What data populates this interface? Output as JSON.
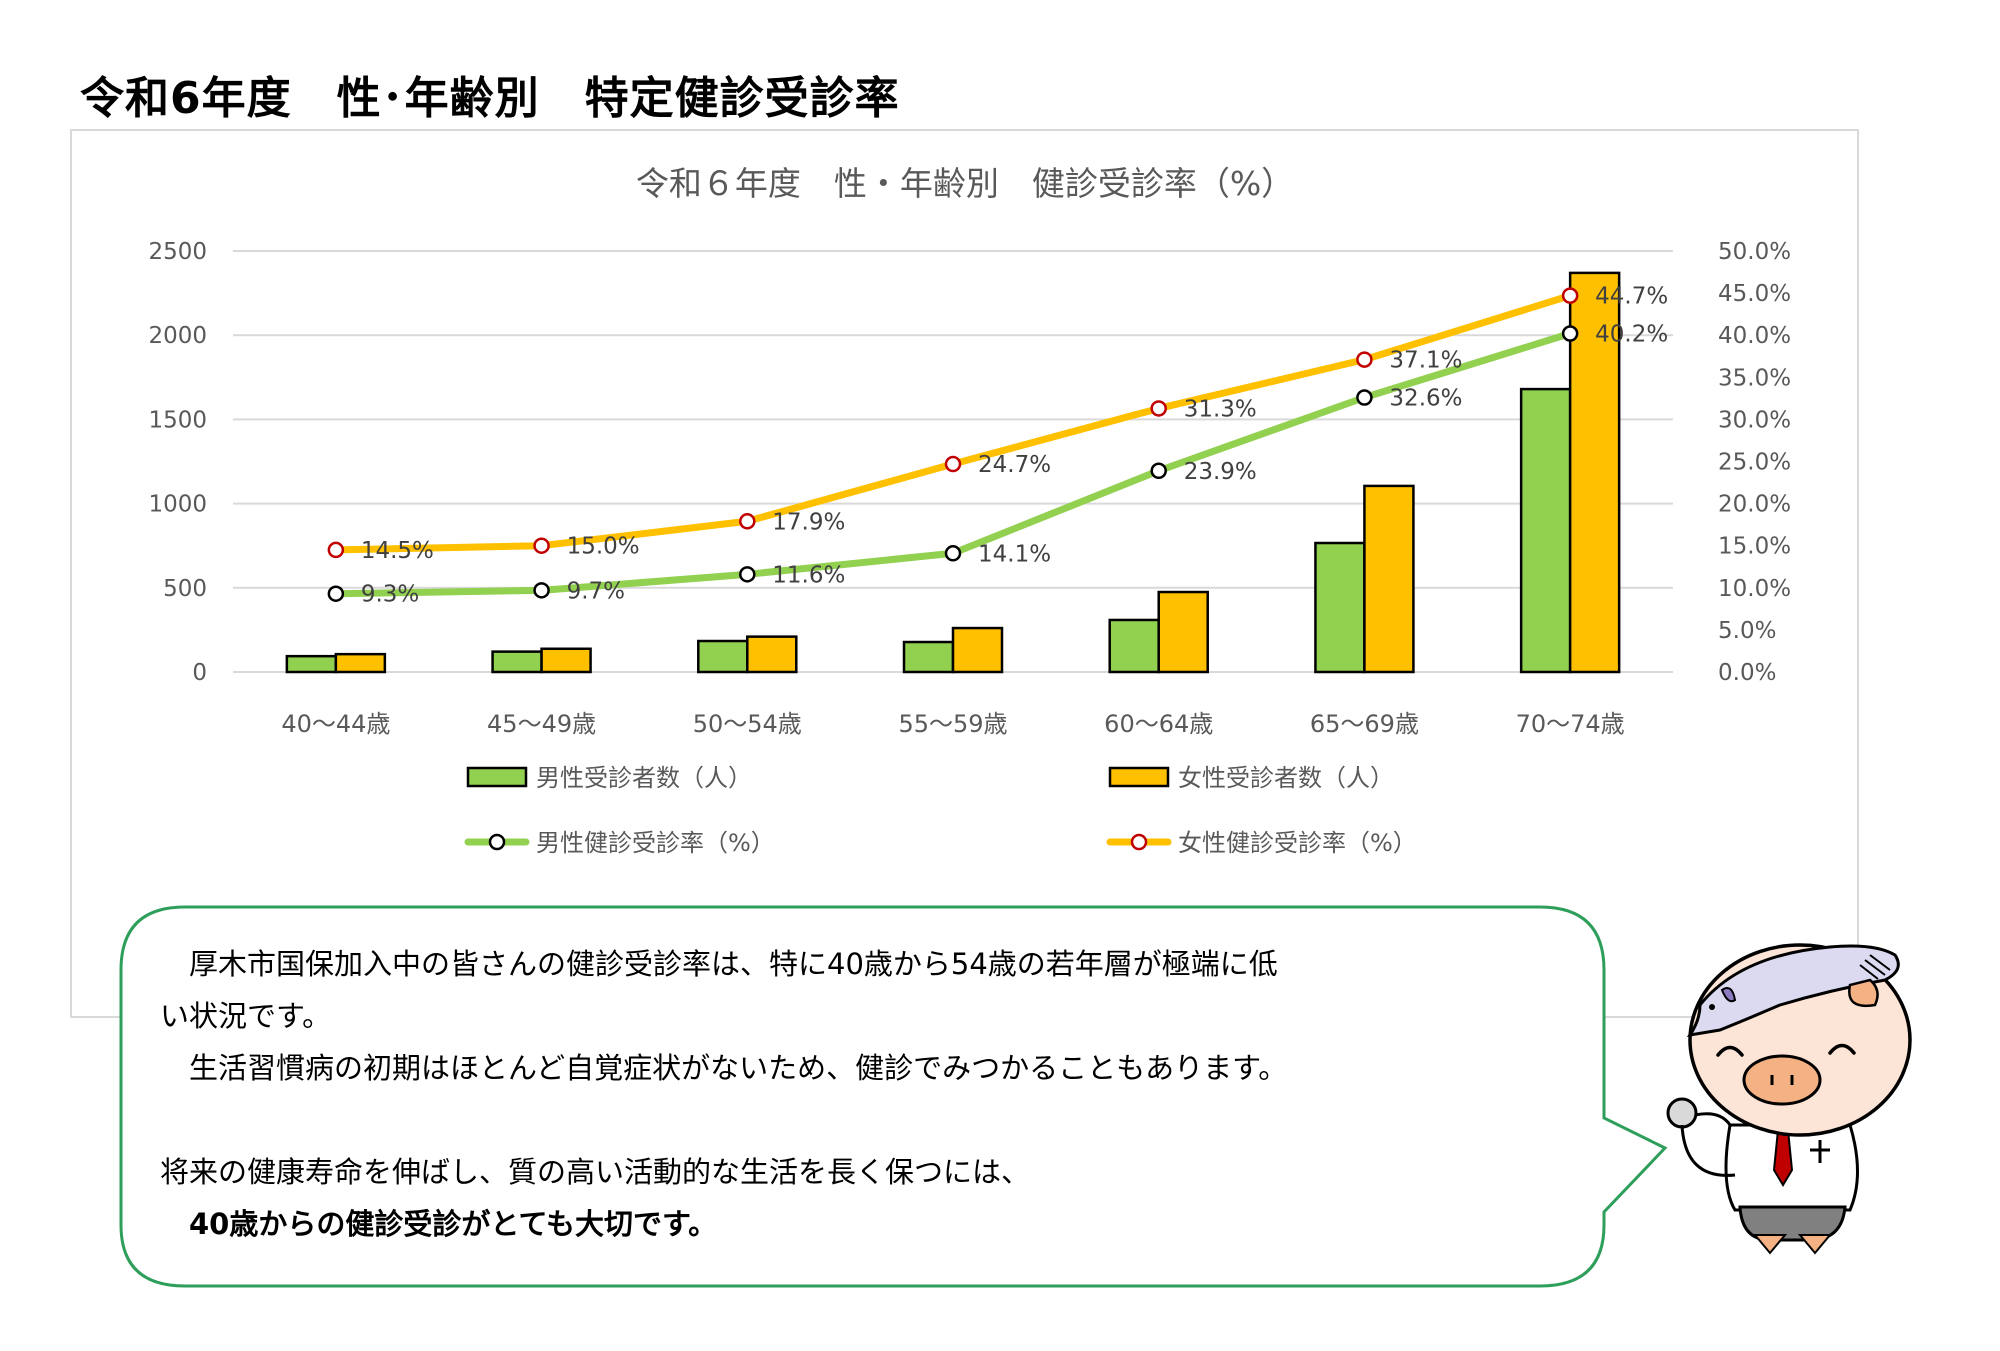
{
  "page_title": "令和6年度　性･年齢別　特定健診受診率",
  "chart_data": {
    "type": "bar",
    "title": "令和６年度　性・年齢別　健診受診率（%）",
    "categories": [
      "40～44歳",
      "45～49歳",
      "50～54歳",
      "55～59歳",
      "60～64歳",
      "65～69歳",
      "70～74歳"
    ],
    "series": [
      {
        "name": "男性受診者数（人）",
        "type": "bar",
        "axis": "left",
        "color": "#92d050",
        "values": [
          94,
          121,
          184,
          178,
          309,
          766,
          1680
        ]
      },
      {
        "name": "女性受診者数（人）",
        "type": "bar",
        "axis": "left",
        "color": "#ffc000",
        "values": [
          106,
          138,
          210,
          261,
          475,
          1105,
          2370
        ]
      },
      {
        "name": "男性健診受診率（%）",
        "type": "line",
        "axis": "right",
        "color": "#92d050",
        "marker_color": "#000000",
        "values": [
          9.3,
          9.7,
          11.6,
          14.1,
          23.9,
          32.6,
          40.2
        ],
        "labels": [
          "9.3%",
          "9.7%",
          "11.6%",
          "14.1%",
          "23.9%",
          "32.6%",
          "40.2%"
        ]
      },
      {
        "name": "女性健診受診率（%）",
        "type": "line",
        "axis": "right",
        "color": "#ffc000",
        "marker_color": "#c00000",
        "values": [
          14.5,
          15.0,
          17.9,
          24.7,
          31.3,
          37.1,
          44.7
        ],
        "labels": [
          "14.5%",
          "15.0%",
          "17.9%",
          "24.7%",
          "31.3%",
          "37.1%",
          "44.7%"
        ]
      }
    ],
    "y_left": {
      "ticks": [
        "0",
        "500",
        "1000",
        "1500",
        "2000",
        "2500"
      ],
      "ylim": [
        0,
        2500
      ]
    },
    "y_right": {
      "ticks": [
        "0.0%",
        "5.0%",
        "10.0%",
        "15.0%",
        "20.0%",
        "25.0%",
        "30.0%",
        "35.0%",
        "40.0%",
        "45.0%",
        "50.0%"
      ],
      "ylim": [
        0,
        50
      ]
    },
    "grid": true,
    "legend_position": "bottom"
  },
  "legend": {
    "male_count": "男性受診者数（人）",
    "female_count": "女性受診者数（人）",
    "male_rate": "男性健診受診率（%）",
    "female_rate": "女性健診受診率（%）"
  },
  "message": {
    "line1": "　厚木市国保加入中の皆さんの健診受診率は、特に40歳から54歳の若年層が極端に低",
    "line2": "い状況です。",
    "line3": "　生活習慣病の初期はほとんど自覚症状がないため、健診でみつかることもあります。",
    "line4": "",
    "line5": "将来の健康寿命を伸ばし、質の高い活動的な生活を長く保つには、",
    "line6": "　40歳からの健診受診がとても大切です。"
  },
  "colors": {
    "male": "#92d050",
    "female": "#ffc000",
    "female_marker": "#c00000",
    "bubble_border": "#2e9e5b",
    "grid": "#d9d9d9",
    "axis_text": "#595959"
  }
}
